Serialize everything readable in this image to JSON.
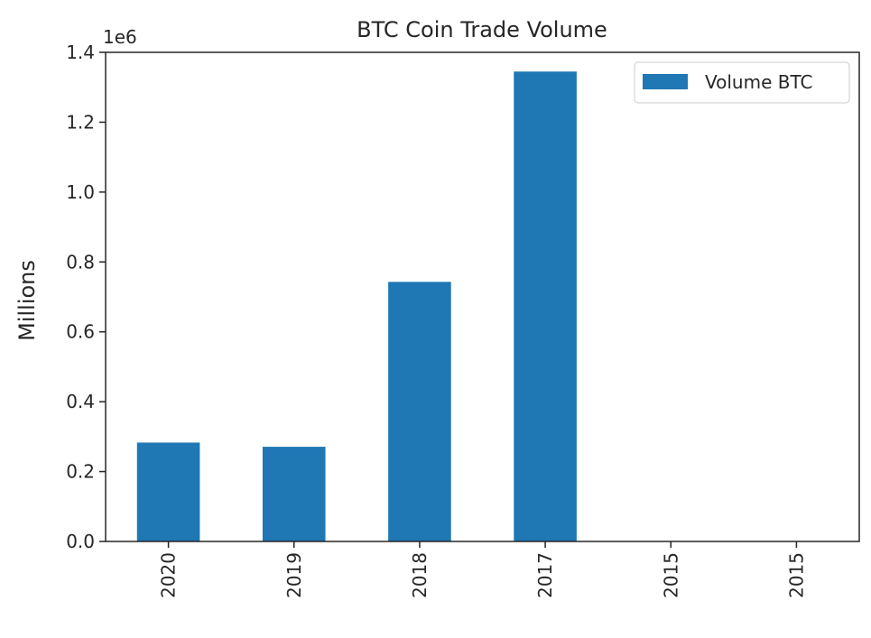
{
  "chart_data": {
    "type": "bar",
    "title": "BTC Coin Trade Volume",
    "xlabel": "",
    "ylabel": "Millions",
    "offset_text": "1e6",
    "categories": [
      "2020",
      "2019",
      "2018",
      "2017",
      "2015",
      "2015"
    ],
    "series": [
      {
        "name": "Volume BTC",
        "color": "#1f77b4",
        "values": [
          283000,
          271000,
          743000,
          1345000,
          0,
          0
        ]
      }
    ],
    "ylim": [
      0,
      1400000
    ],
    "yticks": [
      0,
      200000,
      400000,
      600000,
      800000,
      1000000,
      1200000,
      1400000
    ],
    "ytick_labels": [
      "0.0",
      "0.2",
      "0.4",
      "0.6",
      "0.8",
      "1.0",
      "1.2",
      "1.4"
    ],
    "grid": false,
    "legend_position": "top-right",
    "x_tick_rotation": 90
  }
}
